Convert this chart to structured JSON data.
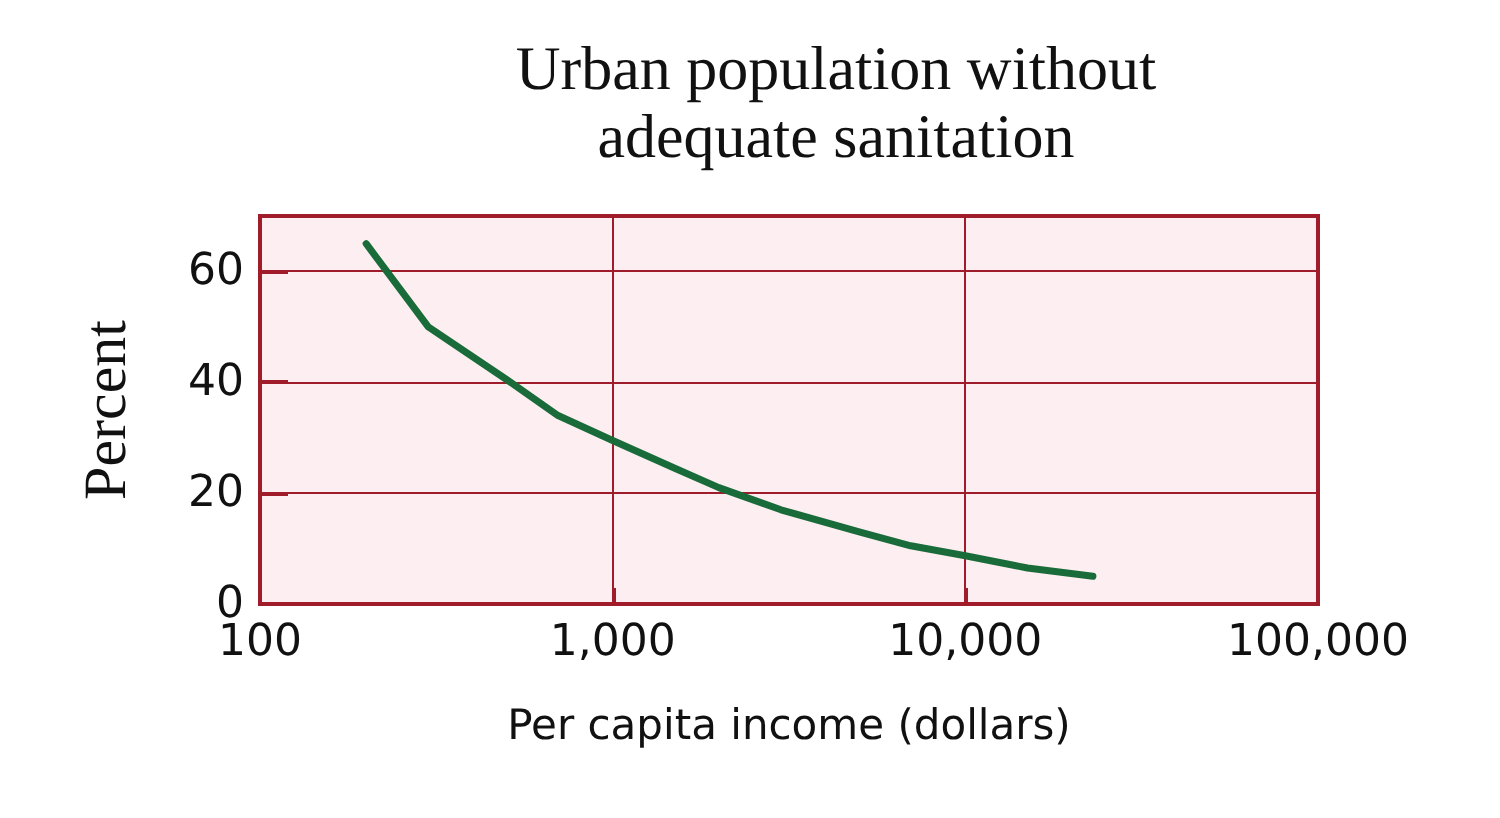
{
  "chart_data": {
    "type": "line",
    "title": "Urban population without\nadequate sanitation",
    "xlabel": "Per capita income (dollars)",
    "ylabel": "Percent",
    "x": [
      200,
      300,
      500,
      700,
      1000,
      1500,
      2000,
      3000,
      5000,
      7000,
      10000,
      15000,
      23000
    ],
    "series": [
      {
        "color": "#1a6b3a",
        "values": [
          65,
          50,
          40.5,
          34,
          29.5,
          24.5,
          21,
          17,
          13,
          10.5,
          8.7,
          6.5,
          5
        ]
      }
    ],
    "log": "x",
    "xlim": [
      100,
      100000
    ],
    "xticks": [
      100,
      {
        "value": 1000,
        "label": "1,000"
      },
      {
        "value": 10000,
        "label": "10,000"
      },
      {
        "value": 100000,
        "label": "100,000"
      }
    ],
    "ylim": [
      0,
      70
    ],
    "yticks": [
      0,
      20,
      40,
      60
    ],
    "grid": true,
    "marker": "none",
    "line_style": "solid"
  }
}
